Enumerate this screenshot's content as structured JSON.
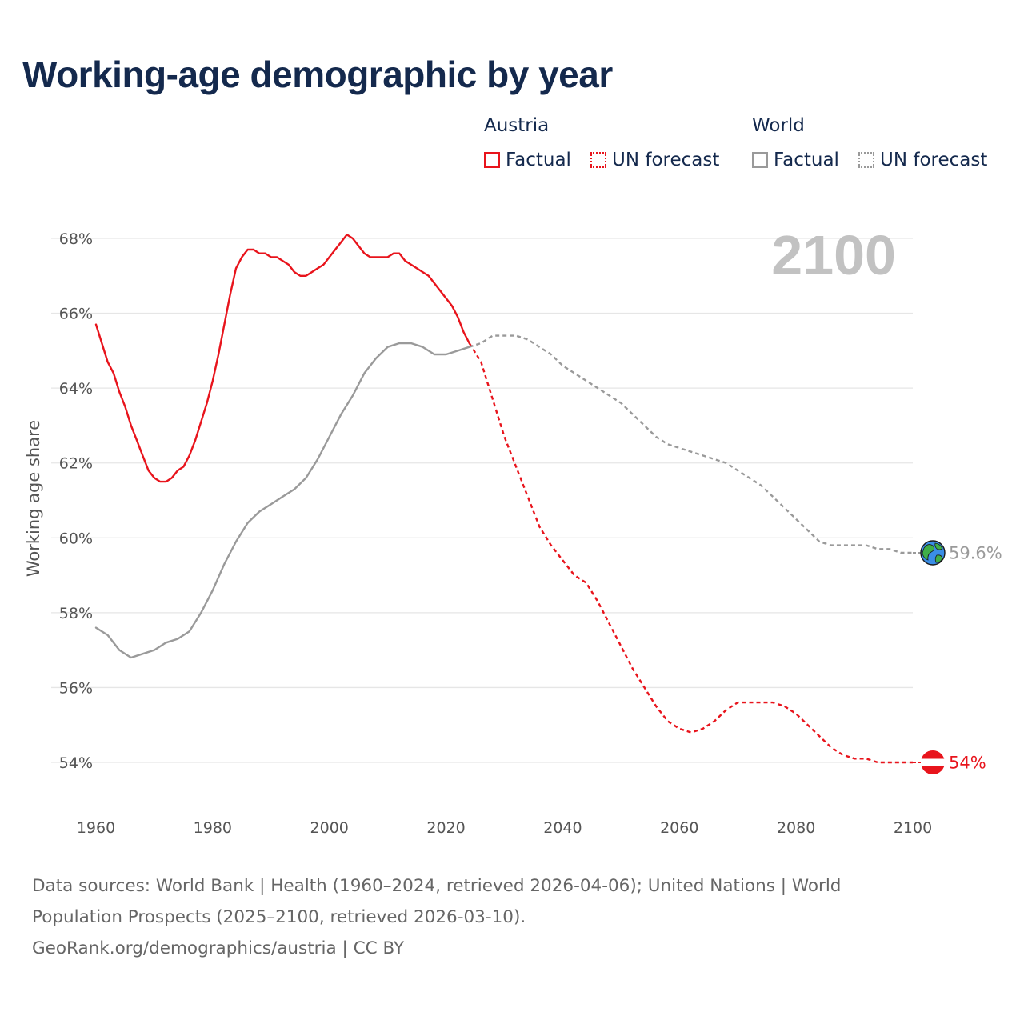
{
  "title": "Working-age demographic by year",
  "legend": {
    "groups": [
      {
        "name": "Austria",
        "color": "#e8141c",
        "factual_label": "Factual",
        "forecast_label": "UN forecast"
      },
      {
        "name": "World",
        "color": "#9a9a9a",
        "factual_label": "Factual",
        "forecast_label": "UN forecast"
      }
    ]
  },
  "chart_data": {
    "type": "line",
    "title": "Working-age demographic by year",
    "xlabel": "",
    "ylabel": "Working age share",
    "xlim": [
      1960,
      2100
    ],
    "ylim": [
      53,
      69
    ],
    "x_ticks": [
      1960,
      1980,
      2000,
      2020,
      2040,
      2060,
      2080,
      2100
    ],
    "x_tick_labels": [
      "1960",
      "1980",
      "2000",
      "2020",
      "2040",
      "2060",
      "2080",
      "2100"
    ],
    "y_ticks": [
      54,
      56,
      58,
      60,
      62,
      64,
      66,
      68
    ],
    "y_tick_labels": [
      "54%",
      "56%",
      "58%",
      "60%",
      "62%",
      "64%",
      "66%",
      "68%"
    ],
    "grid": true,
    "year_watermark": "2100",
    "series": [
      {
        "name": "Austria",
        "kind": "factual",
        "color": "#e8141c",
        "x": [
          1960,
          1961,
          1962,
          1963,
          1964,
          1965,
          1966,
          1967,
          1968,
          1969,
          1970,
          1971,
          1972,
          1973,
          1974,
          1975,
          1976,
          1977,
          1978,
          1979,
          1980,
          1981,
          1982,
          1983,
          1984,
          1985,
          1986,
          1987,
          1988,
          1989,
          1990,
          1991,
          1992,
          1993,
          1994,
          1995,
          1996,
          1997,
          1998,
          1999,
          2000,
          2001,
          2002,
          2003,
          2004,
          2005,
          2006,
          2007,
          2008,
          2009,
          2010,
          2011,
          2012,
          2013,
          2014,
          2015,
          2016,
          2017,
          2018,
          2019,
          2020,
          2021,
          2022,
          2023,
          2024
        ],
        "y": [
          65.7,
          65.2,
          64.7,
          64.4,
          63.9,
          63.5,
          63.0,
          62.6,
          62.2,
          61.8,
          61.6,
          61.5,
          61.5,
          61.6,
          61.8,
          61.9,
          62.2,
          62.6,
          63.1,
          63.6,
          64.2,
          64.9,
          65.7,
          66.5,
          67.2,
          67.5,
          67.7,
          67.7,
          67.6,
          67.6,
          67.5,
          67.5,
          67.4,
          67.3,
          67.1,
          67.0,
          67.0,
          67.1,
          67.2,
          67.3,
          67.5,
          67.7,
          67.9,
          68.1,
          68.0,
          67.8,
          67.6,
          67.5,
          67.5,
          67.5,
          67.5,
          67.6,
          67.6,
          67.4,
          67.3,
          67.2,
          67.1,
          67.0,
          66.8,
          66.6,
          66.4,
          66.2,
          65.9,
          65.5,
          65.2
        ]
      },
      {
        "name": "Austria",
        "kind": "forecast",
        "color": "#e8141c",
        "x": [
          2024,
          2026,
          2028,
          2030,
          2032,
          2034,
          2036,
          2038,
          2040,
          2042,
          2044,
          2046,
          2048,
          2050,
          2052,
          2054,
          2056,
          2058,
          2060,
          2062,
          2064,
          2066,
          2068,
          2070,
          2072,
          2074,
          2076,
          2078,
          2080,
          2082,
          2084,
          2086,
          2088,
          2090,
          2092,
          2094,
          2096,
          2098,
          2100
        ],
        "y": [
          65.2,
          64.7,
          63.7,
          62.7,
          61.9,
          61.1,
          60.3,
          59.8,
          59.4,
          59.0,
          58.8,
          58.3,
          57.7,
          57.1,
          56.5,
          56.0,
          55.5,
          55.1,
          54.9,
          54.8,
          54.9,
          55.1,
          55.4,
          55.6,
          55.6,
          55.6,
          55.6,
          55.5,
          55.3,
          55.0,
          54.7,
          54.4,
          54.2,
          54.1,
          54.1,
          54.0,
          54.0,
          54.0,
          54.0
        ]
      },
      {
        "name": "World",
        "kind": "factual",
        "color": "#9a9a9a",
        "x": [
          1960,
          1962,
          1964,
          1966,
          1968,
          1970,
          1972,
          1974,
          1976,
          1978,
          1980,
          1982,
          1984,
          1986,
          1988,
          1990,
          1992,
          1994,
          1996,
          1998,
          2000,
          2002,
          2004,
          2006,
          2008,
          2010,
          2012,
          2014,
          2016,
          2018,
          2020,
          2022,
          2024
        ],
        "y": [
          57.6,
          57.4,
          57.0,
          56.8,
          56.9,
          57.0,
          57.2,
          57.3,
          57.5,
          58.0,
          58.6,
          59.3,
          59.9,
          60.4,
          60.7,
          60.9,
          61.1,
          61.3,
          61.6,
          62.1,
          62.7,
          63.3,
          63.8,
          64.4,
          64.8,
          65.1,
          65.2,
          65.2,
          65.1,
          64.9,
          64.9,
          65.0,
          65.1
        ]
      },
      {
        "name": "World",
        "kind": "forecast",
        "color": "#9a9a9a",
        "x": [
          2024,
          2026,
          2028,
          2030,
          2032,
          2034,
          2036,
          2038,
          2040,
          2042,
          2044,
          2046,
          2048,
          2050,
          2052,
          2054,
          2056,
          2058,
          2060,
          2062,
          2064,
          2066,
          2068,
          2070,
          2072,
          2074,
          2076,
          2078,
          2080,
          2082,
          2084,
          2086,
          2088,
          2090,
          2092,
          2094,
          2096,
          2098,
          2100
        ],
        "y": [
          65.1,
          65.2,
          65.4,
          65.4,
          65.4,
          65.3,
          65.1,
          64.9,
          64.6,
          64.4,
          64.2,
          64.0,
          63.8,
          63.6,
          63.3,
          63.0,
          62.7,
          62.5,
          62.4,
          62.3,
          62.2,
          62.1,
          62.0,
          61.8,
          61.6,
          61.4,
          61.1,
          60.8,
          60.5,
          60.2,
          59.9,
          59.8,
          59.8,
          59.8,
          59.8,
          59.7,
          59.7,
          59.6,
          59.6
        ]
      }
    ],
    "end_labels": [
      {
        "series": "World",
        "icon": "globe-icon",
        "value": 59.6,
        "text": "59.6%",
        "color": "#9a9a9a"
      },
      {
        "series": "Austria",
        "icon": "austria-flag-icon",
        "value": 54.0,
        "text": "54%",
        "color": "#e8141c"
      }
    ]
  },
  "footer": {
    "line1": "Data sources: World Bank | Health (1960–2024, retrieved 2026-04-06); United Nations | World",
    "line2": "Population Prospects (2025–2100, retrieved 2026-03-10).",
    "line3": "GeoRank.org/demographics/austria | CC BY"
  }
}
